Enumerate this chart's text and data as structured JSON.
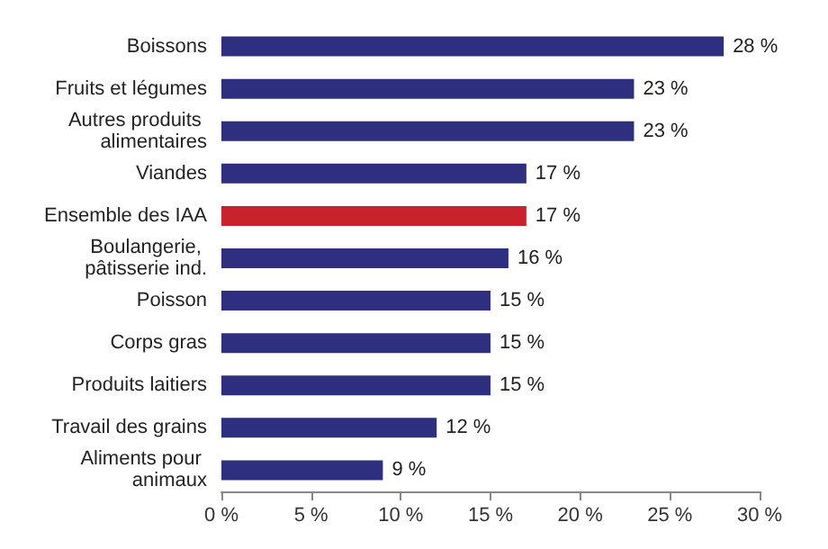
{
  "chart_data": {
    "type": "bar",
    "orientation": "horizontal",
    "categories": [
      "Boissons",
      "Fruits et légumes",
      "Autres produits alimentaires",
      "Viandes",
      "Ensemble des IAA",
      "Boulangerie, pâtisserie ind.",
      "Poisson",
      "Corps gras",
      "Produits laitiers",
      "Travail des grains",
      "Aliments pour animaux"
    ],
    "values": [
      28,
      23,
      23,
      17,
      17,
      16,
      15,
      15,
      15,
      12,
      9
    ],
    "colors": [
      "#2e2f7f",
      "#2e2f7f",
      "#2e2f7f",
      "#2e2f7f",
      "#c8232c",
      "#2e2f7f",
      "#2e2f7f",
      "#2e2f7f",
      "#2e2f7f",
      "#2e2f7f",
      "#2e2f7f"
    ],
    "value_labels": [
      "28 %",
      "23 %",
      "23 %",
      "17 %",
      "17 %",
      "16 %",
      "15 %",
      "15 %",
      "15 %",
      "12 %",
      "9 %"
    ],
    "xlim": [
      0,
      30
    ],
    "xticks": [
      {
        "value": 0,
        "label": "0 %"
      },
      {
        "value": 5,
        "label": "5 %"
      },
      {
        "value": 10,
        "label": "10 %"
      },
      {
        "value": 15,
        "label": "15 %"
      },
      {
        "value": 20,
        "label": "20 %"
      },
      {
        "value": 25,
        "label": "25 %"
      },
      {
        "value": 30,
        "label": "30 %"
      }
    ],
    "grid": false
  }
}
